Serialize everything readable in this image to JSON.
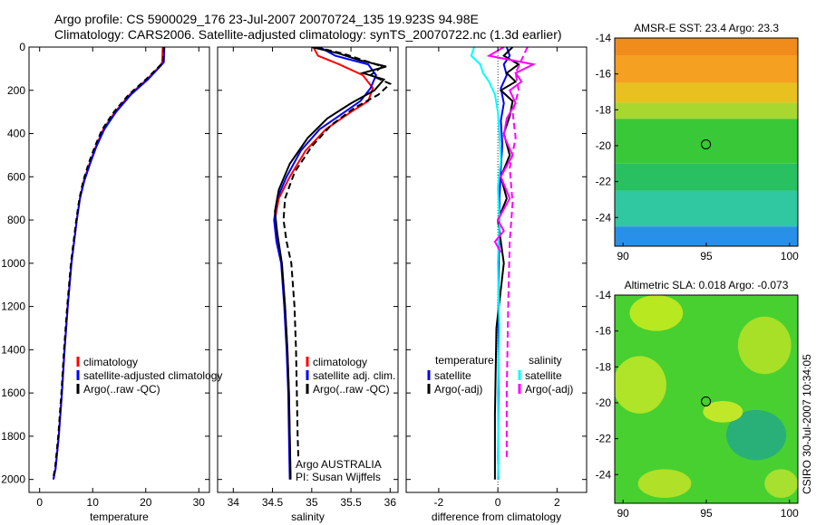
{
  "figure": {
    "title_line1": "Argo profile: CS 5900029_176 23-Jul-2007 20070724_135 19.923S 94.98E",
    "title_line2": "Climatology: CARS2006. Satellite-adjusted climatology: synTS_20070722.nc (1.3d earlier)",
    "side_label": "CSIRO 30-Jul-2007 10:34:05"
  },
  "chart_data": [
    {
      "id": "temperature",
      "type": "line",
      "title": "",
      "xlabel": "temperature",
      "ylabel": "",
      "xlim": [
        -2,
        32
      ],
      "ylim": [
        2060,
        0
      ],
      "y_reversed": true,
      "xticks": [
        0,
        10,
        20,
        30
      ],
      "yticks": [
        0,
        200,
        400,
        600,
        800,
        1000,
        1200,
        1400,
        1600,
        1800,
        2000
      ],
      "series": [
        {
          "name": "climatology",
          "color": "#ff0000",
          "dash": "",
          "x": [
            23.2,
            23.1,
            22.6,
            20.2,
            17.0,
            14.2,
            12.0,
            10.6,
            9.4,
            8.3,
            7.6,
            7.0,
            6.0,
            5.3,
            4.7,
            4.2,
            3.6,
            3.0,
            2.6
          ],
          "y": [
            0,
            70,
            90,
            150,
            220,
            300,
            380,
            460,
            540,
            620,
            700,
            800,
            1000,
            1200,
            1400,
            1600,
            1800,
            1950,
            2000
          ]
        },
        {
          "name": "satellite-adjusted climatology",
          "color": "#0000ff",
          "dash": "",
          "x": [
            23.5,
            23.4,
            22.7,
            20.4,
            17.2,
            14.4,
            12.2,
            10.7,
            9.5,
            8.4,
            7.6,
            7.0,
            6.0,
            5.3,
            4.7,
            4.2,
            3.6,
            3.0,
            2.6
          ],
          "y": [
            0,
            70,
            90,
            150,
            220,
            300,
            380,
            460,
            540,
            620,
            700,
            800,
            1000,
            1200,
            1400,
            1600,
            1800,
            1950,
            2000
          ]
        },
        {
          "name": "Argo(..raw -QC)",
          "color": "#000000",
          "dash": "6,4",
          "x": [
            23.4,
            23.3,
            22.5,
            20.0,
            16.8,
            14.0,
            11.8,
            10.4,
            9.2,
            8.2,
            7.5,
            6.9,
            5.9,
            5.2,
            4.6,
            4.1,
            3.5,
            2.9,
            2.5
          ],
          "y": [
            0,
            70,
            90,
            150,
            220,
            300,
            380,
            460,
            540,
            620,
            700,
            800,
            1000,
            1200,
            1400,
            1600,
            1800,
            1950,
            2000
          ]
        }
      ],
      "legend": [
        {
          "label": "climatology",
          "color": "#ff0000"
        },
        {
          "label": "satellite-adjusted climatology",
          "color": "#0000ff"
        },
        {
          "label": "Argo(..raw -QC)",
          "color": "#000000"
        }
      ]
    },
    {
      "id": "salinity",
      "type": "line",
      "title": "",
      "xlabel": "salinity",
      "ylabel": "",
      "xlim": [
        33.8,
        36.1
      ],
      "ylim": [
        2060,
        0
      ],
      "y_reversed": true,
      "xticks": [
        34,
        34.5,
        35,
        35.5,
        36
      ],
      "yticks": [
        0,
        200,
        400,
        600,
        800,
        1000,
        1200,
        1400,
        1600,
        1800,
        2000
      ],
      "series": [
        {
          "name": "climatology",
          "color": "#ff0000",
          "dash": "",
          "x": [
            35.02,
            35.08,
            35.35,
            35.65,
            35.78,
            35.72,
            35.5,
            35.18,
            34.92,
            34.72,
            34.58,
            34.53,
            34.56,
            34.62,
            34.66,
            34.69,
            34.71,
            34.72,
            34.73
          ],
          "y": [
            0,
            40,
            80,
            130,
            190,
            250,
            300,
            380,
            480,
            600,
            700,
            800,
            900,
            1000,
            1200,
            1400,
            1600,
            1800,
            2000
          ]
        },
        {
          "name": "satellite adj. clim.",
          "color": "#0000ff",
          "dash": "",
          "x": [
            35.1,
            35.3,
            35.72,
            35.82,
            35.75,
            35.62,
            35.42,
            35.1,
            34.86,
            34.68,
            34.56,
            34.52,
            34.55,
            34.61,
            34.65,
            34.68,
            34.7,
            34.71,
            34.72
          ],
          "y": [
            0,
            40,
            80,
            130,
            190,
            250,
            300,
            380,
            480,
            600,
            700,
            800,
            900,
            1000,
            1200,
            1400,
            1600,
            1800,
            2000
          ]
        },
        {
          "name": "Argo(..raw -QC)",
          "color": "#000000",
          "dash": "",
          "x": [
            35.0,
            35.35,
            35.6,
            35.95,
            35.65,
            35.92,
            35.8,
            35.5,
            35.2,
            34.95,
            34.72,
            34.58,
            34.53,
            34.56,
            34.62,
            34.66,
            34.69,
            34.71,
            34.72,
            34.73
          ],
          "y": [
            0,
            30,
            60,
            90,
            120,
            150,
            200,
            260,
            330,
            420,
            540,
            660,
            760,
            860,
            1000,
            1200,
            1400,
            1600,
            1800,
            2000
          ]
        },
        {
          "name": "Argo(..raw -QC)",
          "color": "#000000",
          "dash": "7,4",
          "x": [
            35.05,
            35.4,
            35.65,
            35.9,
            35.75,
            36.0,
            35.85,
            35.55,
            35.25,
            35.0,
            34.78,
            34.66,
            34.64,
            34.68,
            34.74,
            34.78,
            34.8,
            34.81,
            34.82,
            34.83
          ],
          "y": [
            0,
            30,
            60,
            90,
            130,
            170,
            220,
            280,
            360,
            460,
            580,
            700,
            800,
            900,
            1000,
            1200,
            1400,
            1600,
            1800,
            1900
          ]
        }
      ],
      "legend": [
        {
          "label": "climatology",
          "color": "#ff0000"
        },
        {
          "label": "satellite adj. clim.",
          "color": "#0000ff"
        },
        {
          "label": "Argo(..raw -QC)",
          "color": "#000000"
        }
      ],
      "annotations": [
        "Argo AUSTRALIA",
        "PI: Susan Wijffels"
      ]
    },
    {
      "id": "difference",
      "type": "line",
      "title": "",
      "xlabel": "difference from climatology",
      "ylabel": "",
      "xlim": [
        -3.1,
        3.0
      ],
      "ylim": [
        2060,
        0
      ],
      "y_reversed": true,
      "xticks": [
        -2,
        0,
        2
      ],
      "yticks": [
        0,
        200,
        400,
        600,
        800,
        1000,
        1200,
        1400,
        1600,
        1800,
        2000
      ],
      "zero_line": true,
      "series": [
        {
          "name": "temperature satellite",
          "color": "#0000ff",
          "dash": "",
          "x": [
            0.3,
            0.4,
            0.2,
            0.3,
            0.1,
            0.2,
            0.1,
            0.15,
            0.1,
            0.05,
            0.05,
            0.03,
            0.02,
            0.02,
            0.01,
            0.01
          ],
          "y": [
            0,
            40,
            80,
            130,
            190,
            260,
            340,
            450,
            560,
            700,
            850,
            1000,
            1200,
            1500,
            1800,
            2000
          ]
        },
        {
          "name": "temperature Argo(-adj)",
          "color": "#000000",
          "dash": "",
          "x": [
            0.5,
            0.2,
            0.7,
            0.3,
            0.6,
            0.1,
            0.5,
            0.4,
            0.2,
            0.4,
            0.1,
            0.3,
            0.0,
            0.2,
            -0.05,
            -0.1,
            -0.1
          ],
          "y": [
            0,
            40,
            80,
            120,
            160,
            200,
            250,
            320,
            400,
            500,
            600,
            700,
            800,
            1000,
            1300,
            1700,
            2000
          ]
        },
        {
          "name": "salinity satellite",
          "color": "#00ffff",
          "dash": "",
          "x": [
            -0.8,
            -0.9,
            -0.6,
            -0.5,
            -0.3,
            -0.1,
            0.0,
            0.05,
            0.1,
            0.0,
            0.05,
            0.0,
            0.05,
            0.0,
            0.02,
            0.0
          ],
          "y": [
            0,
            40,
            80,
            120,
            160,
            220,
            300,
            400,
            520,
            650,
            800,
            1000,
            1300,
            1600,
            1900,
            2000
          ]
        },
        {
          "name": "salinity Argo(-adj)",
          "color": "#ff00ff",
          "dash": "",
          "x": [
            0.2,
            -0.3,
            1.2,
            0.6,
            0.8,
            0.4,
            0.6,
            0.3,
            0.2,
            0.5,
            0.1,
            0.4,
            0.0,
            0.2,
            -0.1,
            0.1
          ],
          "y": [
            0,
            40,
            80,
            120,
            160,
            200,
            260,
            330,
            410,
            500,
            600,
            700,
            800,
            850,
            900,
            950
          ]
        },
        {
          "name": "salinity Argo(-adj)",
          "color": "#ff00ff",
          "dash": "7,4",
          "x": [
            1.0,
            0.8,
            0.6,
            0.7,
            0.5,
            0.6,
            0.4,
            0.5,
            0.4,
            0.35,
            0.3,
            0.3
          ],
          "y": [
            0,
            60,
            120,
            200,
            300,
            420,
            560,
            720,
            900,
            1200,
            1600,
            1900
          ]
        }
      ],
      "legend_groups": [
        {
          "header": "temperature",
          "items": [
            {
              "label": "satellite",
              "color": "#0000ff"
            },
            {
              "label": "Argo(-adj)",
              "color": "#000000"
            }
          ]
        },
        {
          "header": "salinity",
          "items": [
            {
              "label": "satellite",
              "color": "#00ffff"
            },
            {
              "label": "Argo(-adj)",
              "color": "#ff00ff"
            }
          ]
        }
      ]
    },
    {
      "id": "sst_map",
      "type": "heatmap",
      "title": "AMSR-E SST: 23.4 Argo: 23.3",
      "xlim": [
        89.5,
        100.5
      ],
      "ylim": [
        -25.6,
        -14
      ],
      "xticks": [
        90,
        95,
        100
      ],
      "yticks": [
        -14,
        -16,
        -18,
        -20,
        -22,
        -24
      ],
      "marker": {
        "lon": 94.98,
        "lat": -19.923
      },
      "color_bands": [
        {
          "lat_from": -14.0,
          "lat_to": -15.0,
          "color": "#f08c1c"
        },
        {
          "lat_from": -15.0,
          "lat_to": -16.5,
          "color": "#f5a020"
        },
        {
          "lat_from": -16.5,
          "lat_to": -17.6,
          "color": "#e8c020"
        },
        {
          "lat_from": -17.6,
          "lat_to": -18.5,
          "color": "#a8d830"
        },
        {
          "lat_from": -18.5,
          "lat_to": -21.0,
          "color": "#38c838"
        },
        {
          "lat_from": -21.0,
          "lat_to": -22.5,
          "color": "#28c060"
        },
        {
          "lat_from": -22.5,
          "lat_to": -24.5,
          "color": "#30c8a0"
        },
        {
          "lat_from": -24.5,
          "lat_to": -25.6,
          "color": "#2890e8"
        }
      ]
    },
    {
      "id": "sla_map",
      "type": "heatmap",
      "title": "Altimetric SLA: 0.018 Argo: -0.073",
      "xlim": [
        89.5,
        100.5
      ],
      "ylim": [
        -25.6,
        -14
      ],
      "xticks": [
        90,
        95,
        100
      ],
      "yticks": [
        -14,
        -16,
        -18,
        -20,
        -22,
        -24
      ],
      "marker": {
        "lon": 94.98,
        "lat": -19.923
      },
      "base_color": "#48d030",
      "blobs": [
        {
          "lon": 92.0,
          "lat": -15.0,
          "rlon": 1.6,
          "rlat": 1.0,
          "color": "#b8e820"
        },
        {
          "lon": 98.5,
          "lat": -16.8,
          "rlon": 1.6,
          "rlat": 1.6,
          "color": "#a8e028"
        },
        {
          "lon": 91.0,
          "lat": -19.0,
          "rlon": 1.6,
          "rlat": 1.6,
          "color": "#b0e428"
        },
        {
          "lon": 98.0,
          "lat": -21.8,
          "rlon": 1.8,
          "rlat": 1.4,
          "color": "#28b078"
        },
        {
          "lon": 96.0,
          "lat": -20.5,
          "rlon": 1.2,
          "rlat": 0.6,
          "color": "#c0e828"
        },
        {
          "lon": 92.5,
          "lat": -24.5,
          "rlon": 1.6,
          "rlat": 0.8,
          "color": "#b0e028"
        },
        {
          "lon": 99.5,
          "lat": -24.5,
          "rlon": 1.0,
          "rlat": 0.8,
          "color": "#a8e030"
        }
      ]
    }
  ]
}
